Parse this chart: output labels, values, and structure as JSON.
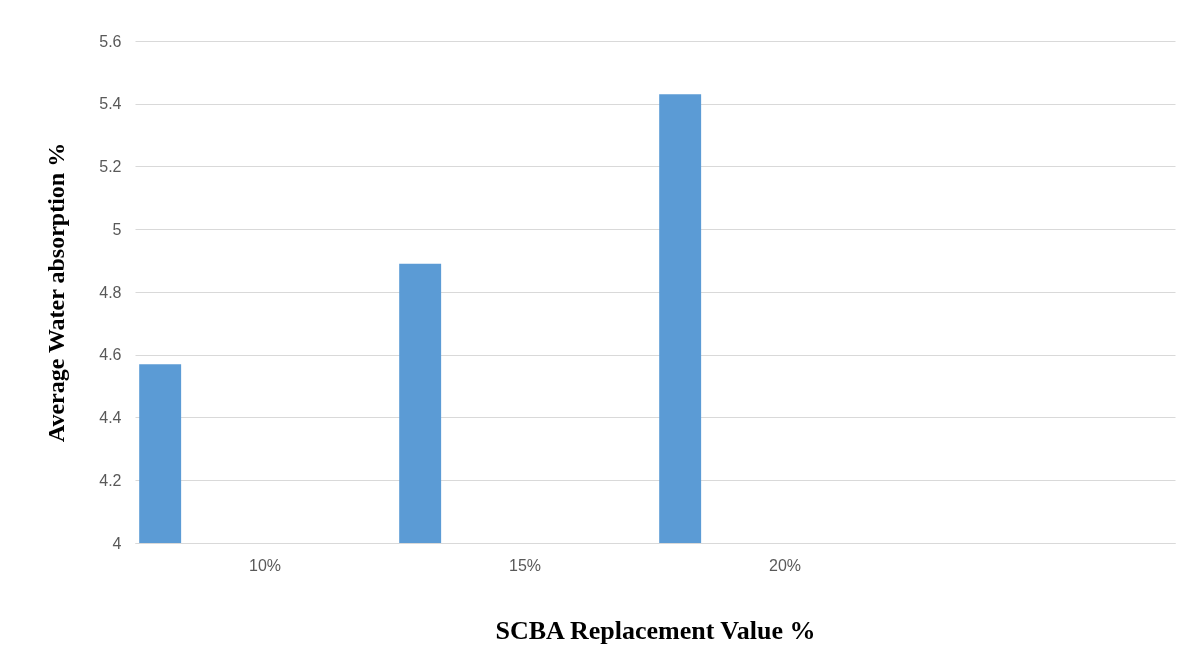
{
  "chart_data": {
    "type": "bar",
    "xlabel": "SCBA Replacement Value %",
    "ylabel": "Average Water absorption %",
    "categories": [
      "10%",
      "15%",
      "20%",
      null
    ],
    "series": [
      {
        "color": "#5b9bd5",
        "values": [
          4.57,
          4.89,
          5.43,
          null
        ]
      }
    ],
    "ylim": [
      4,
      5.6
    ],
    "yticks": [
      4,
      4.2,
      4.4,
      4.6,
      4.8,
      5,
      5.2,
      5.4,
      5.6
    ],
    "grid": "y",
    "legend": false
  }
}
